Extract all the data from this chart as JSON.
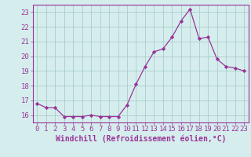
{
  "x": [
    0,
    1,
    2,
    3,
    4,
    5,
    6,
    7,
    8,
    9,
    10,
    11,
    12,
    13,
    14,
    15,
    16,
    17,
    18,
    19,
    20,
    21,
    22,
    23
  ],
  "y": [
    16.8,
    16.5,
    16.5,
    15.9,
    15.9,
    15.9,
    16.0,
    15.9,
    15.9,
    15.9,
    16.7,
    18.1,
    19.3,
    20.3,
    20.5,
    21.3,
    22.4,
    23.2,
    21.2,
    21.3,
    19.8,
    19.3,
    19.2,
    19.0
  ],
  "line_color": "#993399",
  "marker": "D",
  "marker_size": 2.2,
  "bg_color": "#d5eeed",
  "grid_color": "#aacccc",
  "axis_color": "#993399",
  "xlabel": "Windchill (Refroidissement éolien,°C)",
  "xlim": [
    -0.5,
    23.5
  ],
  "ylim": [
    15.5,
    23.5
  ],
  "yticks": [
    16,
    17,
    18,
    19,
    20,
    21,
    22,
    23
  ],
  "xticks": [
    0,
    1,
    2,
    3,
    4,
    5,
    6,
    7,
    8,
    9,
    10,
    11,
    12,
    13,
    14,
    15,
    16,
    17,
    18,
    19,
    20,
    21,
    22,
    23
  ],
  "tick_fontsize": 6.5,
  "label_fontsize": 7.0
}
